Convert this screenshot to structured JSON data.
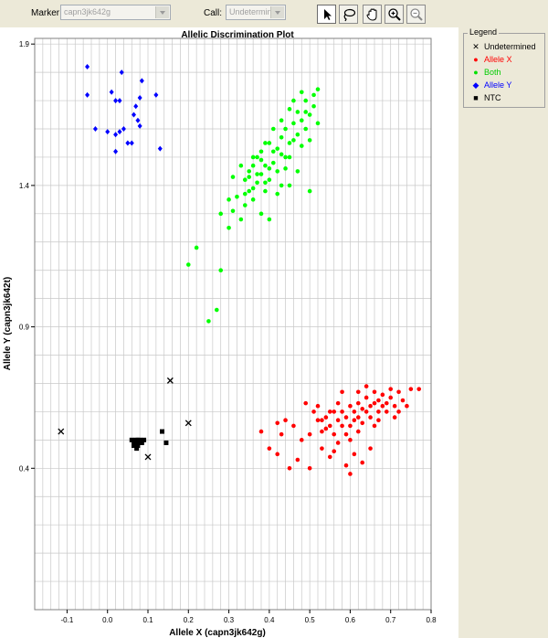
{
  "toolbar": {
    "marker_label": "Marker:",
    "marker_value": "capn3jk642g",
    "call_label": "Call:",
    "call_value": "Undetermin..."
  },
  "legend": {
    "title": "Legend",
    "items": [
      {
        "label": "Undetermined",
        "color": "#000000",
        "shape": "x"
      },
      {
        "label": "Allele X",
        "color": "#ff0000",
        "shape": "circle"
      },
      {
        "label": "Both",
        "color": "#00ff00",
        "shape": "circle"
      },
      {
        "label": "Allele Y",
        "color": "#0000ff",
        "shape": "diamond"
      },
      {
        "label": "NTC",
        "color": "#000000",
        "shape": "square"
      }
    ]
  },
  "chart_data": {
    "type": "scatter",
    "title": "Allelic Discrimination Plot",
    "xlabel": "Allele X (capn3jk642g)",
    "ylabel": "Allele Y (capn3jk642t)",
    "xlim": [
      -0.18,
      0.8
    ],
    "ylim": [
      -0.1,
      1.92
    ],
    "x_ticks": [
      -0.1,
      0.0,
      0.1,
      0.2,
      0.3,
      0.4,
      0.5,
      0.6,
      0.7,
      0.8
    ],
    "y_ticks": [
      0.4,
      0.9,
      1.4,
      1.9
    ],
    "grid": true,
    "series": [
      {
        "name": "Undetermined",
        "color": "#000000",
        "shape": "x",
        "points": [
          [
            -0.115,
            0.53
          ],
          [
            0.155,
            0.71
          ],
          [
            0.2,
            0.56
          ],
          [
            0.1,
            0.44
          ]
        ]
      },
      {
        "name": "NTC",
        "color": "#000000",
        "shape": "square",
        "points": [
          [
            0.06,
            0.5
          ],
          [
            0.065,
            0.49
          ],
          [
            0.07,
            0.5
          ],
          [
            0.075,
            0.48
          ],
          [
            0.08,
            0.5
          ],
          [
            0.07,
            0.49
          ],
          [
            0.085,
            0.49
          ],
          [
            0.065,
            0.48
          ],
          [
            0.075,
            0.5
          ],
          [
            0.08,
            0.49
          ],
          [
            0.09,
            0.5
          ],
          [
            0.072,
            0.47
          ],
          [
            0.135,
            0.53
          ],
          [
            0.145,
            0.49
          ]
        ]
      },
      {
        "name": "Allele Y",
        "color": "#0000ff",
        "shape": "diamond",
        "points": [
          [
            -0.05,
            1.82
          ],
          [
            -0.05,
            1.72
          ],
          [
            -0.03,
            1.6
          ],
          [
            0.0,
            1.59
          ],
          [
            0.01,
            1.73
          ],
          [
            0.02,
            1.7
          ],
          [
            0.03,
            1.7
          ],
          [
            0.035,
            1.8
          ],
          [
            0.02,
            1.58
          ],
          [
            0.03,
            1.59
          ],
          [
            0.04,
            1.6
          ],
          [
            0.05,
            1.55
          ],
          [
            0.06,
            1.55
          ],
          [
            0.065,
            1.65
          ],
          [
            0.07,
            1.68
          ],
          [
            0.075,
            1.63
          ],
          [
            0.08,
            1.61
          ],
          [
            0.085,
            1.77
          ],
          [
            0.08,
            1.71
          ],
          [
            0.02,
            1.52
          ],
          [
            0.12,
            1.72
          ],
          [
            0.13,
            1.53
          ]
        ]
      },
      {
        "name": "Both",
        "color": "#00ff00",
        "shape": "circle",
        "points": [
          [
            0.2,
            1.12
          ],
          [
            0.22,
            1.18
          ],
          [
            0.25,
            0.92
          ],
          [
            0.27,
            0.96
          ],
          [
            0.28,
            1.1
          ],
          [
            0.28,
            1.3
          ],
          [
            0.3,
            1.25
          ],
          [
            0.3,
            1.35
          ],
          [
            0.31,
            1.31
          ],
          [
            0.32,
            1.36
          ],
          [
            0.33,
            1.28
          ],
          [
            0.34,
            1.33
          ],
          [
            0.34,
            1.42
          ],
          [
            0.35,
            1.38
          ],
          [
            0.35,
            1.45
          ],
          [
            0.36,
            1.39
          ],
          [
            0.36,
            1.47
          ],
          [
            0.37,
            1.41
          ],
          [
            0.37,
            1.5
          ],
          [
            0.38,
            1.44
          ],
          [
            0.38,
            1.52
          ],
          [
            0.39,
            1.38
          ],
          [
            0.39,
            1.47
          ],
          [
            0.4,
            1.42
          ],
          [
            0.4,
            1.55
          ],
          [
            0.41,
            1.48
          ],
          [
            0.41,
            1.6
          ],
          [
            0.42,
            1.45
          ],
          [
            0.42,
            1.53
          ],
          [
            0.43,
            1.57
          ],
          [
            0.43,
            1.63
          ],
          [
            0.44,
            1.5
          ],
          [
            0.44,
            1.6
          ],
          [
            0.45,
            1.55
          ],
          [
            0.45,
            1.67
          ],
          [
            0.46,
            1.62
          ],
          [
            0.46,
            1.7
          ],
          [
            0.47,
            1.58
          ],
          [
            0.47,
            1.66
          ],
          [
            0.48,
            1.73
          ],
          [
            0.48,
            1.63
          ],
          [
            0.49,
            1.6
          ],
          [
            0.49,
            1.7
          ],
          [
            0.5,
            1.65
          ],
          [
            0.5,
            1.56
          ],
          [
            0.51,
            1.68
          ],
          [
            0.52,
            1.62
          ],
          [
            0.52,
            1.74
          ],
          [
            0.38,
            1.3
          ],
          [
            0.4,
            1.28
          ],
          [
            0.43,
            1.4
          ],
          [
            0.45,
            1.4
          ],
          [
            0.47,
            1.45
          ],
          [
            0.5,
            1.38
          ],
          [
            0.36,
            1.5
          ],
          [
            0.33,
            1.47
          ],
          [
            0.42,
            1.37
          ],
          [
            0.44,
            1.46
          ],
          [
            0.39,
            1.55
          ],
          [
            0.41,
            1.52
          ],
          [
            0.38,
            1.49
          ],
          [
            0.37,
            1.44
          ],
          [
            0.4,
            1.46
          ],
          [
            0.43,
            1.51
          ],
          [
            0.46,
            1.56
          ],
          [
            0.35,
            1.43
          ],
          [
            0.31,
            1.43
          ],
          [
            0.34,
            1.37
          ],
          [
            0.49,
            1.66
          ],
          [
            0.51,
            1.72
          ],
          [
            0.48,
            1.54
          ],
          [
            0.45,
            1.5
          ],
          [
            0.39,
            1.41
          ],
          [
            0.36,
            1.35
          ]
        ]
      },
      {
        "name": "Allele X",
        "color": "#ff0000",
        "shape": "circle",
        "points": [
          [
            0.38,
            0.53
          ],
          [
            0.4,
            0.47
          ],
          [
            0.42,
            0.45
          ],
          [
            0.42,
            0.56
          ],
          [
            0.43,
            0.52
          ],
          [
            0.44,
            0.57
          ],
          [
            0.45,
            0.4
          ],
          [
            0.46,
            0.55
          ],
          [
            0.47,
            0.43
          ],
          [
            0.48,
            0.5
          ],
          [
            0.5,
            0.52
          ],
          [
            0.5,
            0.4
          ],
          [
            0.51,
            0.6
          ],
          [
            0.52,
            0.57
          ],
          [
            0.53,
            0.53
          ],
          [
            0.53,
            0.47
          ],
          [
            0.54,
            0.58
          ],
          [
            0.55,
            0.55
          ],
          [
            0.55,
            0.44
          ],
          [
            0.56,
            0.6
          ],
          [
            0.56,
            0.52
          ],
          [
            0.57,
            0.57
          ],
          [
            0.57,
            0.63
          ],
          [
            0.58,
            0.55
          ],
          [
            0.58,
            0.6
          ],
          [
            0.59,
            0.58
          ],
          [
            0.59,
            0.52
          ],
          [
            0.6,
            0.62
          ],
          [
            0.6,
            0.55
          ],
          [
            0.61,
            0.6
          ],
          [
            0.61,
            0.57
          ],
          [
            0.62,
            0.63
          ],
          [
            0.62,
            0.58
          ],
          [
            0.63,
            0.61
          ],
          [
            0.63,
            0.56
          ],
          [
            0.64,
            0.6
          ],
          [
            0.64,
            0.65
          ],
          [
            0.65,
            0.62
          ],
          [
            0.65,
            0.58
          ],
          [
            0.66,
            0.63
          ],
          [
            0.66,
            0.67
          ],
          [
            0.67,
            0.6
          ],
          [
            0.67,
            0.64
          ],
          [
            0.68,
            0.62
          ],
          [
            0.68,
            0.66
          ],
          [
            0.69,
            0.63
          ],
          [
            0.7,
            0.65
          ],
          [
            0.71,
            0.62
          ],
          [
            0.72,
            0.67
          ],
          [
            0.73,
            0.64
          ],
          [
            0.75,
            0.68
          ],
          [
            0.77,
            0.68
          ],
          [
            0.61,
            0.45
          ],
          [
            0.59,
            0.41
          ],
          [
            0.6,
            0.38
          ],
          [
            0.63,
            0.42
          ],
          [
            0.65,
            0.47
          ],
          [
            0.57,
            0.49
          ],
          [
            0.56,
            0.46
          ],
          [
            0.54,
            0.54
          ],
          [
            0.52,
            0.62
          ],
          [
            0.58,
            0.67
          ],
          [
            0.62,
            0.67
          ],
          [
            0.64,
            0.69
          ],
          [
            0.7,
            0.68
          ],
          [
            0.69,
            0.6
          ],
          [
            0.66,
            0.55
          ],
          [
            0.71,
            0.58
          ],
          [
            0.74,
            0.62
          ],
          [
            0.6,
            0.5
          ],
          [
            0.62,
            0.53
          ],
          [
            0.67,
            0.57
          ],
          [
            0.72,
            0.6
          ],
          [
            0.55,
            0.6
          ],
          [
            0.53,
            0.57
          ],
          [
            0.49,
            0.63
          ]
        ]
      }
    ]
  }
}
